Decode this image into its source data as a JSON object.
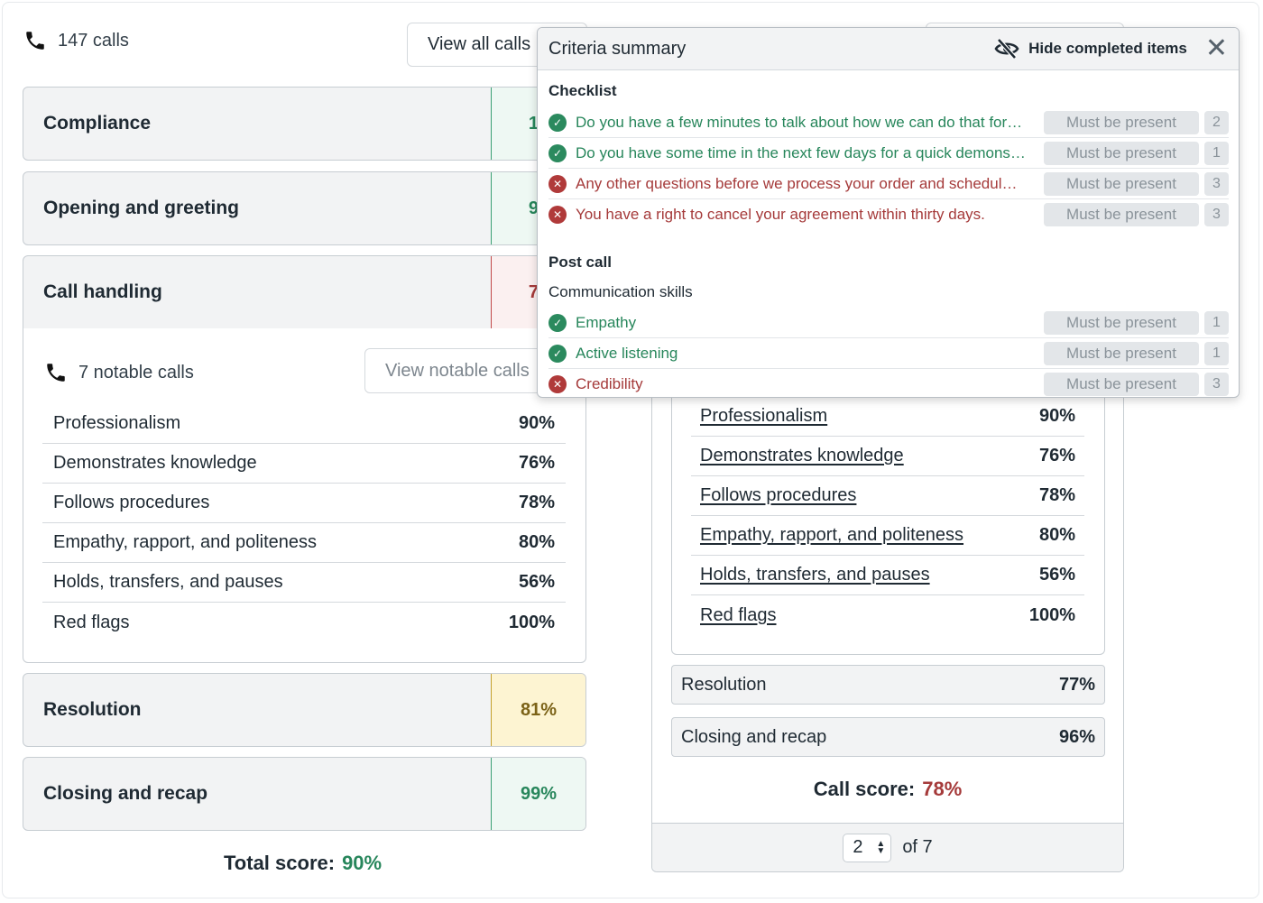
{
  "header": {
    "calls_count": "147 calls",
    "view_all_label": "View all calls"
  },
  "categories": [
    {
      "label": "Compliance",
      "score": "10"
    },
    {
      "label": "Opening and greeting",
      "score": "94"
    },
    {
      "label": "Call handling",
      "score": "78"
    },
    {
      "label": "Resolution",
      "score": "81%"
    },
    {
      "label": "Closing and recap",
      "score": "99%"
    }
  ],
  "call_handling": {
    "notable_count": "7 notable calls",
    "view_notable_label": "View notable calls",
    "rows": [
      {
        "name": "Professionalism",
        "pct": "90%"
      },
      {
        "name": "Demonstrates knowledge",
        "pct": "76%"
      },
      {
        "name": "Follows procedures",
        "pct": "78%"
      },
      {
        "name": "Empathy, rapport, and politeness",
        "pct": "80%"
      },
      {
        "name": "Holds, transfers, and pauses",
        "pct": "56%"
      },
      {
        "name": "Red flags",
        "pct": "100%"
      }
    ]
  },
  "total": {
    "label": "Total score:",
    "value": "90%"
  },
  "call_detail": {
    "rows": [
      {
        "name": "Professionalism",
        "pct": "90%"
      },
      {
        "name": "Demonstrates knowledge",
        "pct": "76%"
      },
      {
        "name": "Follows procedures",
        "pct": "78%"
      },
      {
        "name": "Empathy, rapport, and politeness",
        "pct": "80%"
      },
      {
        "name": "Holds, transfers, and pauses",
        "pct": "56%"
      },
      {
        "name": "Red flags",
        "pct": "100%"
      }
    ],
    "resolution": {
      "name": "Resolution",
      "pct": "77%"
    },
    "closing": {
      "name": "Closing and recap",
      "pct": "96%"
    },
    "call_score_label": "Call score:",
    "call_score_value": "78%",
    "pager": {
      "current": "2",
      "of_label": "of 7"
    }
  },
  "popup": {
    "title": "Criteria summary",
    "hide_label": "Hide completed items",
    "checklist_heading": "Checklist",
    "checklist": [
      {
        "status": "ok",
        "text": "Do you have a few minutes to talk about how we can do that for…",
        "tag": "Must be present",
        "count": "2"
      },
      {
        "status": "ok",
        "text": "Do you have some time in the next few days for a quick demons…",
        "tag": "Must be present",
        "count": "1"
      },
      {
        "status": "bad",
        "text": "Any other questions before we process your order and schedul…",
        "tag": "Must be present",
        "count": "3"
      },
      {
        "status": "bad",
        "text": "You have a right to cancel your agreement within thirty days.",
        "tag": "Must be present",
        "count": "3"
      }
    ],
    "postcall_heading": "Post call",
    "subheading": "Communication skills",
    "postcall": [
      {
        "status": "ok",
        "text": "Empathy",
        "tag": "Must be present",
        "count": "1"
      },
      {
        "status": "ok",
        "text": "Active listening",
        "tag": "Must be present",
        "count": "1"
      },
      {
        "status": "bad",
        "text": "Credibility",
        "tag": "Must be present",
        "count": "3"
      }
    ]
  },
  "colors": {
    "green": "#27865b",
    "red": "#a53a3a",
    "yellow_bg": "#fdf4d2"
  }
}
